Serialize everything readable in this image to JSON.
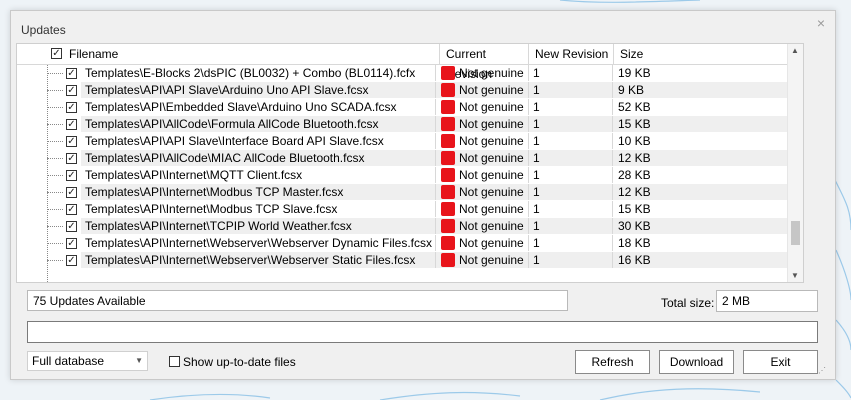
{
  "window": {
    "title": "Updates",
    "close_glyph": "×"
  },
  "grid": {
    "columns": {
      "filename": "Filename",
      "current_revision": "Current Revision",
      "new_revision": "New Revision",
      "size": "Size"
    },
    "header_checked": true,
    "rows": [
      {
        "checked": true,
        "filename": "Templates\\E-Blocks 2\\dsPIC (BL0032) + Combo (BL0114).fcfx",
        "current": "Not genuine",
        "new": "1",
        "size": "19 KB"
      },
      {
        "checked": true,
        "filename": "Templates\\API\\API Slave\\Arduino Uno API Slave.fcsx",
        "current": "Not genuine",
        "new": "1",
        "size": "9 KB"
      },
      {
        "checked": true,
        "filename": "Templates\\API\\Embedded Slave\\Arduino Uno SCADA.fcsx",
        "current": "Not genuine",
        "new": "1",
        "size": "52 KB"
      },
      {
        "checked": true,
        "filename": "Templates\\API\\AllCode\\Formula AllCode Bluetooth.fcsx",
        "current": "Not genuine",
        "new": "1",
        "size": "15 KB"
      },
      {
        "checked": true,
        "filename": "Templates\\API\\API Slave\\Interface Board API Slave.fcsx",
        "current": "Not genuine",
        "new": "1",
        "size": "10 KB"
      },
      {
        "checked": true,
        "filename": "Templates\\API\\AllCode\\MIAC AllCode Bluetooth.fcsx",
        "current": "Not genuine",
        "new": "1",
        "size": "12 KB"
      },
      {
        "checked": true,
        "filename": "Templates\\API\\Internet\\MQTT Client.fcsx",
        "current": "Not genuine",
        "new": "1",
        "size": "28 KB"
      },
      {
        "checked": true,
        "filename": "Templates\\API\\Internet\\Modbus TCP Master.fcsx",
        "current": "Not genuine",
        "new": "1",
        "size": "12 KB"
      },
      {
        "checked": true,
        "filename": "Templates\\API\\Internet\\Modbus TCP Slave.fcsx",
        "current": "Not genuine",
        "new": "1",
        "size": "15 KB"
      },
      {
        "checked": true,
        "filename": "Templates\\API\\Internet\\TCPIP World Weather.fcsx",
        "current": "Not genuine",
        "new": "1",
        "size": "30 KB"
      },
      {
        "checked": true,
        "filename": "Templates\\API\\Internet\\Webserver\\Webserver Dynamic Files.fcsx",
        "current": "Not genuine",
        "new": "1",
        "size": "18 KB"
      },
      {
        "checked": true,
        "filename": "Templates\\API\\Internet\\Webserver\\Webserver Static Files.fcsx",
        "current": "Not genuine",
        "new": "1",
        "size": "16 KB"
      }
    ],
    "status_color": "#e8141b",
    "scroll_position": 0.88
  },
  "footer": {
    "updates_available": "75 Updates Available",
    "total_size_label": "Total size:",
    "total_size_value": "2 MB",
    "progress_text": "",
    "database_option": "Full database",
    "show_uptodate_label": "Show up-to-date files",
    "show_uptodate_checked": false,
    "refresh_label": "Refresh",
    "download_label": "Download",
    "exit_label": "Exit"
  },
  "colors": {
    "dialog_bg": "#f0f0f0",
    "text": "#000000",
    "alt_row": "#efefef",
    "accent_lines": "#3a9ad9"
  }
}
